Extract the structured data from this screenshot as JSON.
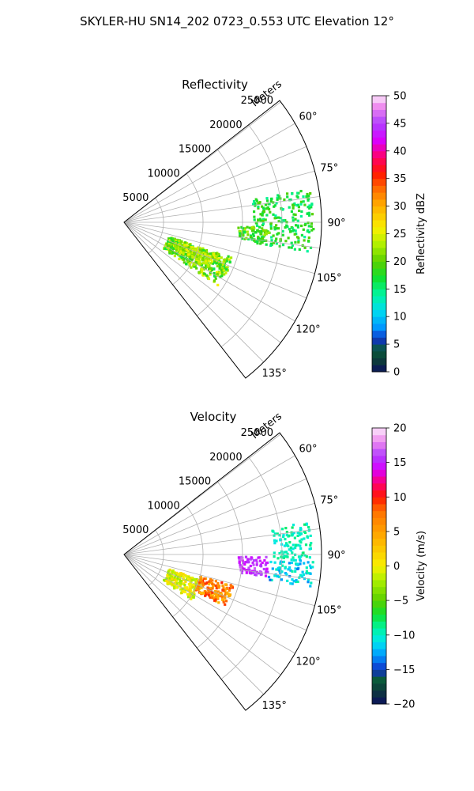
{
  "figure": {
    "title": "SKYLER-HU  SN14_202  0723_0.553 UTC Elevation 12°"
  },
  "colors": {
    "grid": "#b0b0b0",
    "axis": "#000000",
    "background": "#ffffff"
  },
  "chart_data": [
    {
      "type": "heatmap",
      "subtype": "polar-sector (PPI)",
      "title": "Reflectivity",
      "radial_axis": {
        "label": "Meters",
        "ticks": [
          5000,
          10000,
          15000,
          20000,
          25000
        ],
        "tick_labels": [
          "5000",
          "10000",
          "15000",
          "20000",
          "25000"
        ],
        "range": [
          0,
          25000
        ]
      },
      "angular_axis": {
        "unit": "degrees",
        "ticks": [
          60,
          75,
          90,
          105,
          120,
          135
        ],
        "tick_labels": [
          "60°",
          "75°",
          "90°",
          "105°",
          "120°",
          "135°"
        ],
        "sector": [
          52,
          142
        ]
      },
      "grid": true,
      "colorbar": {
        "label": "Reflectivity dBZ",
        "range": [
          0,
          50
        ],
        "ticks": [
          0,
          5,
          10,
          15,
          20,
          25,
          30,
          35,
          40,
          45,
          50
        ],
        "tick_labels": [
          "0",
          "5",
          "10",
          "15",
          "20",
          "25",
          "30",
          "35",
          "40",
          "45",
          "50"
        ],
        "stops": [
          {
            "v": 0,
            "c": "#0b0f5e"
          },
          {
            "v": 2,
            "c": "#0d3b3a"
          },
          {
            "v": 4,
            "c": "#0a5a3a"
          },
          {
            "v": 6,
            "c": "#1032c8"
          },
          {
            "v": 8,
            "c": "#0096ff"
          },
          {
            "v": 11,
            "c": "#00dcf0"
          },
          {
            "v": 14,
            "c": "#00f5a0"
          },
          {
            "v": 17,
            "c": "#10e030"
          },
          {
            "v": 20,
            "c": "#5ad000"
          },
          {
            "v": 23,
            "c": "#aef000"
          },
          {
            "v": 26,
            "c": "#f8f000"
          },
          {
            "v": 30,
            "c": "#ffb000"
          },
          {
            "v": 33,
            "c": "#ff7000"
          },
          {
            "v": 36,
            "c": "#ff1800"
          },
          {
            "v": 39,
            "c": "#ff0070"
          },
          {
            "v": 42,
            "c": "#d800ff"
          },
          {
            "v": 45,
            "c": "#b040ff"
          },
          {
            "v": 48,
            "c": "#ee88ee"
          },
          {
            "v": 50,
            "c": "#fbe8fb"
          }
        ]
      },
      "echo_regions": [
        {
          "az": [
            80,
            99
          ],
          "r": [
            16500,
            24000
          ],
          "value_range": [
            14,
            20
          ],
          "density": 0.45
        },
        {
          "az": [
            92,
            98
          ],
          "r": [
            14500,
            18500
          ],
          "value_range": [
            15,
            23
          ],
          "density": 0.7
        },
        {
          "az": [
            108,
            124
          ],
          "r": [
            6000,
            14500
          ],
          "value_range": [
            16,
            26
          ],
          "density": 0.85
        },
        {
          "az": [
            110,
            118
          ],
          "r": [
            7000,
            12500
          ],
          "value_range": [
            20,
            26
          ],
          "density": 0.9
        }
      ]
    },
    {
      "type": "heatmap",
      "subtype": "polar-sector (PPI)",
      "title": "Velocity",
      "radial_axis": {
        "label": "Meters",
        "ticks": [
          5000,
          10000,
          15000,
          20000,
          25000
        ],
        "tick_labels": [
          "5000",
          "10000",
          "15000",
          "20000",
          "25000"
        ],
        "range": [
          0,
          25000
        ]
      },
      "angular_axis": {
        "unit": "degrees",
        "ticks": [
          60,
          75,
          90,
          105,
          120,
          135
        ],
        "tick_labels": [
          "60°",
          "75°",
          "90°",
          "105°",
          "120°",
          "135°"
        ],
        "sector": [
          52,
          142
        ]
      },
      "grid": true,
      "colorbar": {
        "label": "Velocity (m/s)",
        "range": [
          -20,
          20
        ],
        "ticks": [
          -20,
          -15,
          -10,
          -5,
          0,
          5,
          10,
          15,
          20
        ],
        "tick_labels": [
          "−20",
          "−15",
          "−10",
          "−5",
          "0",
          "5",
          "10",
          "15",
          "20"
        ],
        "stops": [
          {
            "v": -20,
            "c": "#0b0f5e"
          },
          {
            "v": -18,
            "c": "#0d3b3a"
          },
          {
            "v": -16.5,
            "c": "#0a5a3a"
          },
          {
            "v": -15,
            "c": "#1032c8"
          },
          {
            "v": -13,
            "c": "#0096ff"
          },
          {
            "v": -11,
            "c": "#00e6f0"
          },
          {
            "v": -9,
            "c": "#00f5a0"
          },
          {
            "v": -7,
            "c": "#10e030"
          },
          {
            "v": -5,
            "c": "#5ad000"
          },
          {
            "v": -2,
            "c": "#aef000"
          },
          {
            "v": 0,
            "c": "#f8f000"
          },
          {
            "v": 4,
            "c": "#ffb000"
          },
          {
            "v": 8,
            "c": "#ff7000"
          },
          {
            "v": 10,
            "c": "#ff1800"
          },
          {
            "v": 12,
            "c": "#ff0070"
          },
          {
            "v": 14,
            "c": "#d800ff"
          },
          {
            "v": 16,
            "c": "#b040ff"
          },
          {
            "v": 18,
            "c": "#ee88ee"
          },
          {
            "v": 20,
            "c": "#fbe8fb"
          }
        ]
      },
      "echo_regions": [
        {
          "az": [
            80,
            92
          ],
          "r": [
            19000,
            24000
          ],
          "value_range": [
            -11,
            -8
          ],
          "density": 0.5
        },
        {
          "az": [
            91,
            99
          ],
          "r": [
            14500,
            18500
          ],
          "value_range": [
            14,
            17
          ],
          "density": 0.7
        },
        {
          "az": [
            92,
            100
          ],
          "r": [
            18500,
            24000
          ],
          "value_range": [
            -14,
            -9
          ],
          "density": 0.5
        },
        {
          "az": [
            108,
            124
          ],
          "r": [
            6000,
            10500
          ],
          "value_range": [
            -3,
            2
          ],
          "density": 0.85
        },
        {
          "az": [
            106,
            117
          ],
          "r": [
            10000,
            14500
          ],
          "value_range": [
            3,
            10
          ],
          "density": 0.85
        }
      ]
    }
  ]
}
